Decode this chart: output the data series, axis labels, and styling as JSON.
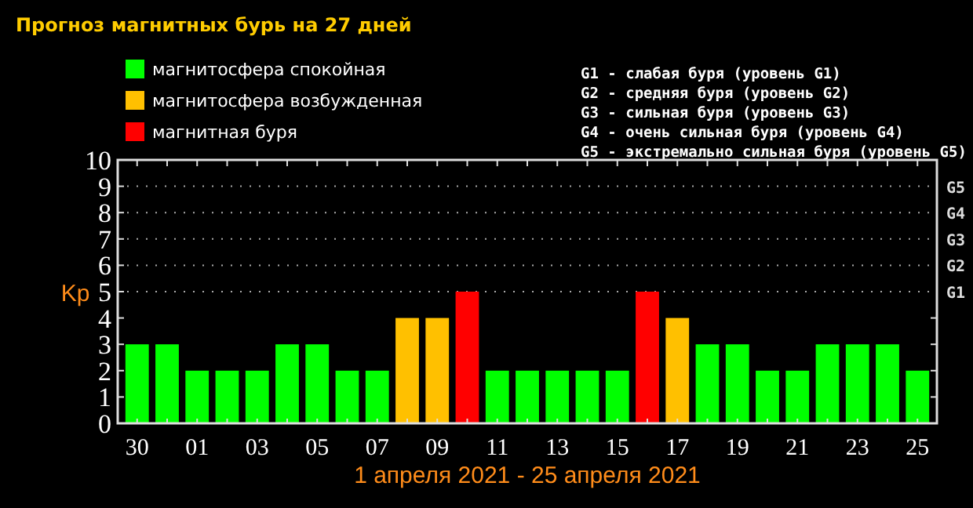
{
  "chart_data": {
    "type": "bar",
    "title": "Прогноз магнитных бурь на 27 дней",
    "xlabel": "1 апреля 2021 - 25 апреля 2021",
    "ylabel": "Kp",
    "categories": [
      "30",
      null,
      "01",
      null,
      "03",
      null,
      "05",
      null,
      "07",
      null,
      "09",
      null,
      "11",
      null,
      "13",
      null,
      "15",
      null,
      "17",
      null,
      "19",
      null,
      "21",
      null,
      "23",
      null,
      "25"
    ],
    "series": [
      {
        "name": "магнитосфера спокойная",
        "color": "#00ff00",
        "values": [
          3,
          3,
          2,
          2,
          2,
          3,
          3,
          2,
          2,
          null,
          null,
          null,
          2,
          2,
          2,
          2,
          2,
          null,
          null,
          3,
          3,
          2,
          2,
          3,
          3,
          3,
          2
        ]
      },
      {
        "name": "магнитосфера возбужденная",
        "color": "#ffc000",
        "values": [
          null,
          null,
          null,
          null,
          null,
          null,
          null,
          null,
          null,
          4,
          4,
          null,
          null,
          null,
          null,
          null,
          null,
          null,
          4,
          null,
          null,
          null,
          null,
          null,
          null,
          null,
          null
        ]
      },
      {
        "name": "магнитная буря",
        "color": "#ff0000",
        "values": [
          null,
          null,
          null,
          null,
          null,
          null,
          null,
          null,
          null,
          null,
          null,
          5,
          null,
          null,
          null,
          null,
          null,
          5,
          null,
          null,
          null,
          null,
          null,
          null,
          null,
          null,
          null
        ]
      }
    ],
    "ylim": [
      0,
      10
    ],
    "yticks": [
      0,
      1,
      2,
      3,
      4,
      5,
      6,
      7,
      8,
      9,
      10
    ],
    "legend": "top left",
    "annotations": [
      "G1 - слабая буря (уровень G1)",
      "G2 - средняя буря (уровень G2)",
      "G3 - сильная буря (уровень G3)",
      "G4 - очень сильная буря (уровень G4)",
      "G5 - экстремально сильная буря (уровень G5)"
    ],
    "ref_lines": [
      {
        "axis": "y",
        "value": 5,
        "label": "G1",
        "line_style": "dotted"
      },
      {
        "axis": "y",
        "value": 6,
        "label": "G2",
        "line_style": "dotted"
      },
      {
        "axis": "y",
        "value": 7,
        "label": "G3",
        "line_style": "dotted"
      },
      {
        "axis": "y",
        "value": 8,
        "label": "G4",
        "line_style": "dotted"
      },
      {
        "axis": "y",
        "value": 9,
        "label": "G5",
        "line_style": "dotted"
      }
    ]
  }
}
